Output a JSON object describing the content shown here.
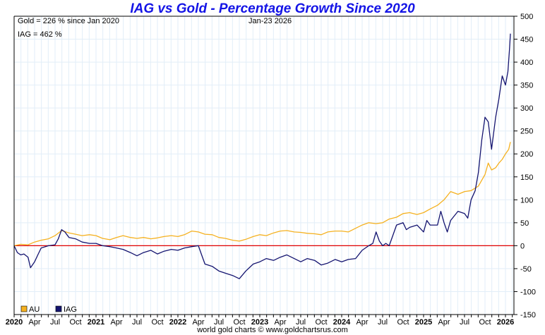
{
  "chart_data": {
    "type": "line",
    "title": "IAG vs Gold - Percentage Growth Since 2020",
    "xlabel": "",
    "ylabel": "",
    "ylim": [
      -150,
      500
    ],
    "xlim": [
      2020.0,
      2026.1
    ],
    "y_ticks": [
      500,
      450,
      400,
      350,
      300,
      250,
      200,
      150,
      100,
      50,
      0,
      -50,
      -100,
      -150
    ],
    "x_ticks": [
      {
        "t": 2020.0,
        "label": "2020",
        "bold": true
      },
      {
        "t": 2020.25,
        "label": "Apr",
        "bold": false
      },
      {
        "t": 2020.5,
        "label": "Jul",
        "bold": false
      },
      {
        "t": 2020.75,
        "label": "Oct",
        "bold": false
      },
      {
        "t": 2021.0,
        "label": "2021",
        "bold": true
      },
      {
        "t": 2021.25,
        "label": "Apr",
        "bold": false
      },
      {
        "t": 2021.5,
        "label": "Jul",
        "bold": false
      },
      {
        "t": 2021.75,
        "label": "Oct",
        "bold": false
      },
      {
        "t": 2022.0,
        "label": "2022",
        "bold": true
      },
      {
        "t": 2022.25,
        "label": "Apr",
        "bold": false
      },
      {
        "t": 2022.5,
        "label": "Jul",
        "bold": false
      },
      {
        "t": 2022.75,
        "label": "Oct",
        "bold": false
      },
      {
        "t": 2023.0,
        "label": "2023",
        "bold": true
      },
      {
        "t": 2023.25,
        "label": "Apr",
        "bold": false
      },
      {
        "t": 2023.5,
        "label": "Jul",
        "bold": false
      },
      {
        "t": 2023.75,
        "label": "Oct",
        "bold": false
      },
      {
        "t": 2024.0,
        "label": "2024",
        "bold": true
      },
      {
        "t": 2024.25,
        "label": "Apr",
        "bold": false
      },
      {
        "t": 2024.5,
        "label": "Jul",
        "bold": false
      },
      {
        "t": 2024.75,
        "label": "Oct",
        "bold": false
      },
      {
        "t": 2025.0,
        "label": "2025",
        "bold": true
      },
      {
        "t": 2025.25,
        "label": "Apr",
        "bold": false
      },
      {
        "t": 2025.5,
        "label": "Jul",
        "bold": false
      },
      {
        "t": 2025.75,
        "label": "Oct",
        "bold": false
      },
      {
        "t": 2026.0,
        "label": "2026",
        "bold": true
      }
    ],
    "grid": true,
    "reference_line": {
      "y": 0,
      "color": "#e00000"
    },
    "legend": {
      "placement": "bottom-left"
    },
    "series": [
      {
        "name": "AU",
        "color": "#f5b120",
        "points": [
          [
            2020.0,
            0
          ],
          [
            2020.08,
            3
          ],
          [
            2020.17,
            2
          ],
          [
            2020.25,
            8
          ],
          [
            2020.33,
            12
          ],
          [
            2020.42,
            15
          ],
          [
            2020.5,
            22
          ],
          [
            2020.58,
            33
          ],
          [
            2020.67,
            28
          ],
          [
            2020.75,
            25
          ],
          [
            2020.83,
            22
          ],
          [
            2020.92,
            24
          ],
          [
            2021.0,
            22
          ],
          [
            2021.08,
            16
          ],
          [
            2021.17,
            13
          ],
          [
            2021.25,
            18
          ],
          [
            2021.33,
            22
          ],
          [
            2021.42,
            18
          ],
          [
            2021.5,
            16
          ],
          [
            2021.58,
            18
          ],
          [
            2021.67,
            15
          ],
          [
            2021.75,
            17
          ],
          [
            2021.83,
            20
          ],
          [
            2021.92,
            22
          ],
          [
            2022.0,
            20
          ],
          [
            2022.08,
            24
          ],
          [
            2022.17,
            32
          ],
          [
            2022.25,
            30
          ],
          [
            2022.33,
            25
          ],
          [
            2022.42,
            24
          ],
          [
            2022.5,
            18
          ],
          [
            2022.58,
            16
          ],
          [
            2022.67,
            12
          ],
          [
            2022.75,
            10
          ],
          [
            2022.83,
            14
          ],
          [
            2022.92,
            20
          ],
          [
            2023.0,
            24
          ],
          [
            2023.08,
            22
          ],
          [
            2023.17,
            28
          ],
          [
            2023.25,
            32
          ],
          [
            2023.33,
            33
          ],
          [
            2023.42,
            30
          ],
          [
            2023.5,
            29
          ],
          [
            2023.58,
            27
          ],
          [
            2023.67,
            26
          ],
          [
            2023.75,
            24
          ],
          [
            2023.83,
            30
          ],
          [
            2023.92,
            32
          ],
          [
            2024.0,
            32
          ],
          [
            2024.08,
            30
          ],
          [
            2024.17,
            38
          ],
          [
            2024.25,
            45
          ],
          [
            2024.33,
            50
          ],
          [
            2024.42,
            48
          ],
          [
            2024.5,
            50
          ],
          [
            2024.58,
            58
          ],
          [
            2024.67,
            62
          ],
          [
            2024.75,
            70
          ],
          [
            2024.83,
            72
          ],
          [
            2024.92,
            68
          ],
          [
            2025.0,
            72
          ],
          [
            2025.08,
            80
          ],
          [
            2025.17,
            88
          ],
          [
            2025.25,
            100
          ],
          [
            2025.33,
            118
          ],
          [
            2025.42,
            112
          ],
          [
            2025.5,
            118
          ],
          [
            2025.58,
            120
          ],
          [
            2025.67,
            130
          ],
          [
            2025.75,
            155
          ],
          [
            2025.79,
            180
          ],
          [
            2025.83,
            165
          ],
          [
            2025.88,
            170
          ],
          [
            2025.92,
            180
          ],
          [
            2025.96,
            188
          ],
          [
            2026.0,
            200
          ],
          [
            2026.04,
            210
          ],
          [
            2026.06,
            226
          ]
        ]
      },
      {
        "name": "IAG",
        "color": "#141470",
        "points": [
          [
            2020.0,
            0
          ],
          [
            2020.04,
            -15
          ],
          [
            2020.08,
            -20
          ],
          [
            2020.12,
            -18
          ],
          [
            2020.17,
            -25
          ],
          [
            2020.2,
            -48
          ],
          [
            2020.25,
            -35
          ],
          [
            2020.29,
            -20
          ],
          [
            2020.33,
            -5
          ],
          [
            2020.42,
            0
          ],
          [
            2020.5,
            2
          ],
          [
            2020.54,
            15
          ],
          [
            2020.58,
            35
          ],
          [
            2020.62,
            30
          ],
          [
            2020.67,
            18
          ],
          [
            2020.75,
            15
          ],
          [
            2020.83,
            8
          ],
          [
            2020.92,
            5
          ],
          [
            2021.0,
            5
          ],
          [
            2021.08,
            0
          ],
          [
            2021.17,
            -2
          ],
          [
            2021.25,
            -5
          ],
          [
            2021.33,
            -8
          ],
          [
            2021.42,
            -15
          ],
          [
            2021.5,
            -22
          ],
          [
            2021.58,
            -15
          ],
          [
            2021.67,
            -10
          ],
          [
            2021.75,
            -18
          ],
          [
            2021.83,
            -12
          ],
          [
            2021.92,
            -8
          ],
          [
            2022.0,
            -10
          ],
          [
            2022.08,
            -5
          ],
          [
            2022.17,
            -2
          ],
          [
            2022.25,
            0
          ],
          [
            2022.29,
            -20
          ],
          [
            2022.33,
            -40
          ],
          [
            2022.42,
            -45
          ],
          [
            2022.5,
            -55
          ],
          [
            2022.58,
            -60
          ],
          [
            2022.67,
            -65
          ],
          [
            2022.75,
            -72
          ],
          [
            2022.83,
            -55
          ],
          [
            2022.92,
            -40
          ],
          [
            2023.0,
            -35
          ],
          [
            2023.08,
            -28
          ],
          [
            2023.17,
            -32
          ],
          [
            2023.25,
            -25
          ],
          [
            2023.33,
            -20
          ],
          [
            2023.42,
            -28
          ],
          [
            2023.5,
            -35
          ],
          [
            2023.58,
            -28
          ],
          [
            2023.67,
            -32
          ],
          [
            2023.75,
            -42
          ],
          [
            2023.83,
            -38
          ],
          [
            2023.92,
            -30
          ],
          [
            2024.0,
            -35
          ],
          [
            2024.08,
            -30
          ],
          [
            2024.17,
            -28
          ],
          [
            2024.25,
            -10
          ],
          [
            2024.33,
            0
          ],
          [
            2024.38,
            5
          ],
          [
            2024.42,
            30
          ],
          [
            2024.46,
            10
          ],
          [
            2024.5,
            0
          ],
          [
            2024.54,
            5
          ],
          [
            2024.58,
            0
          ],
          [
            2024.63,
            25
          ],
          [
            2024.67,
            45
          ],
          [
            2024.75,
            50
          ],
          [
            2024.79,
            35
          ],
          [
            2024.83,
            40
          ],
          [
            2024.92,
            45
          ],
          [
            2025.0,
            30
          ],
          [
            2025.04,
            55
          ],
          [
            2025.08,
            45
          ],
          [
            2025.17,
            45
          ],
          [
            2025.21,
            75
          ],
          [
            2025.25,
            50
          ],
          [
            2025.29,
            30
          ],
          [
            2025.33,
            55
          ],
          [
            2025.42,
            75
          ],
          [
            2025.5,
            70
          ],
          [
            2025.54,
            60
          ],
          [
            2025.58,
            100
          ],
          [
            2025.63,
            120
          ],
          [
            2025.67,
            160
          ],
          [
            2025.71,
            230
          ],
          [
            2025.75,
            280
          ],
          [
            2025.79,
            270
          ],
          [
            2025.83,
            210
          ],
          [
            2025.88,
            280
          ],
          [
            2025.92,
            320
          ],
          [
            2025.96,
            370
          ],
          [
            2026.0,
            350
          ],
          [
            2026.03,
            380
          ],
          [
            2026.05,
            430
          ],
          [
            2026.06,
            462
          ]
        ]
      }
    ]
  },
  "annotations": {
    "gold_label": "Gold = 226 % since Jan 2020",
    "iag_label": "IAG = 462 %",
    "date_label": "Jan-23  2026"
  },
  "legend_items": [
    {
      "label": "AU",
      "color": "#f5b120"
    },
    {
      "label": "IAG",
      "color": "#141470"
    }
  ],
  "footer": "world gold charts © www.goldchartsrus.com"
}
